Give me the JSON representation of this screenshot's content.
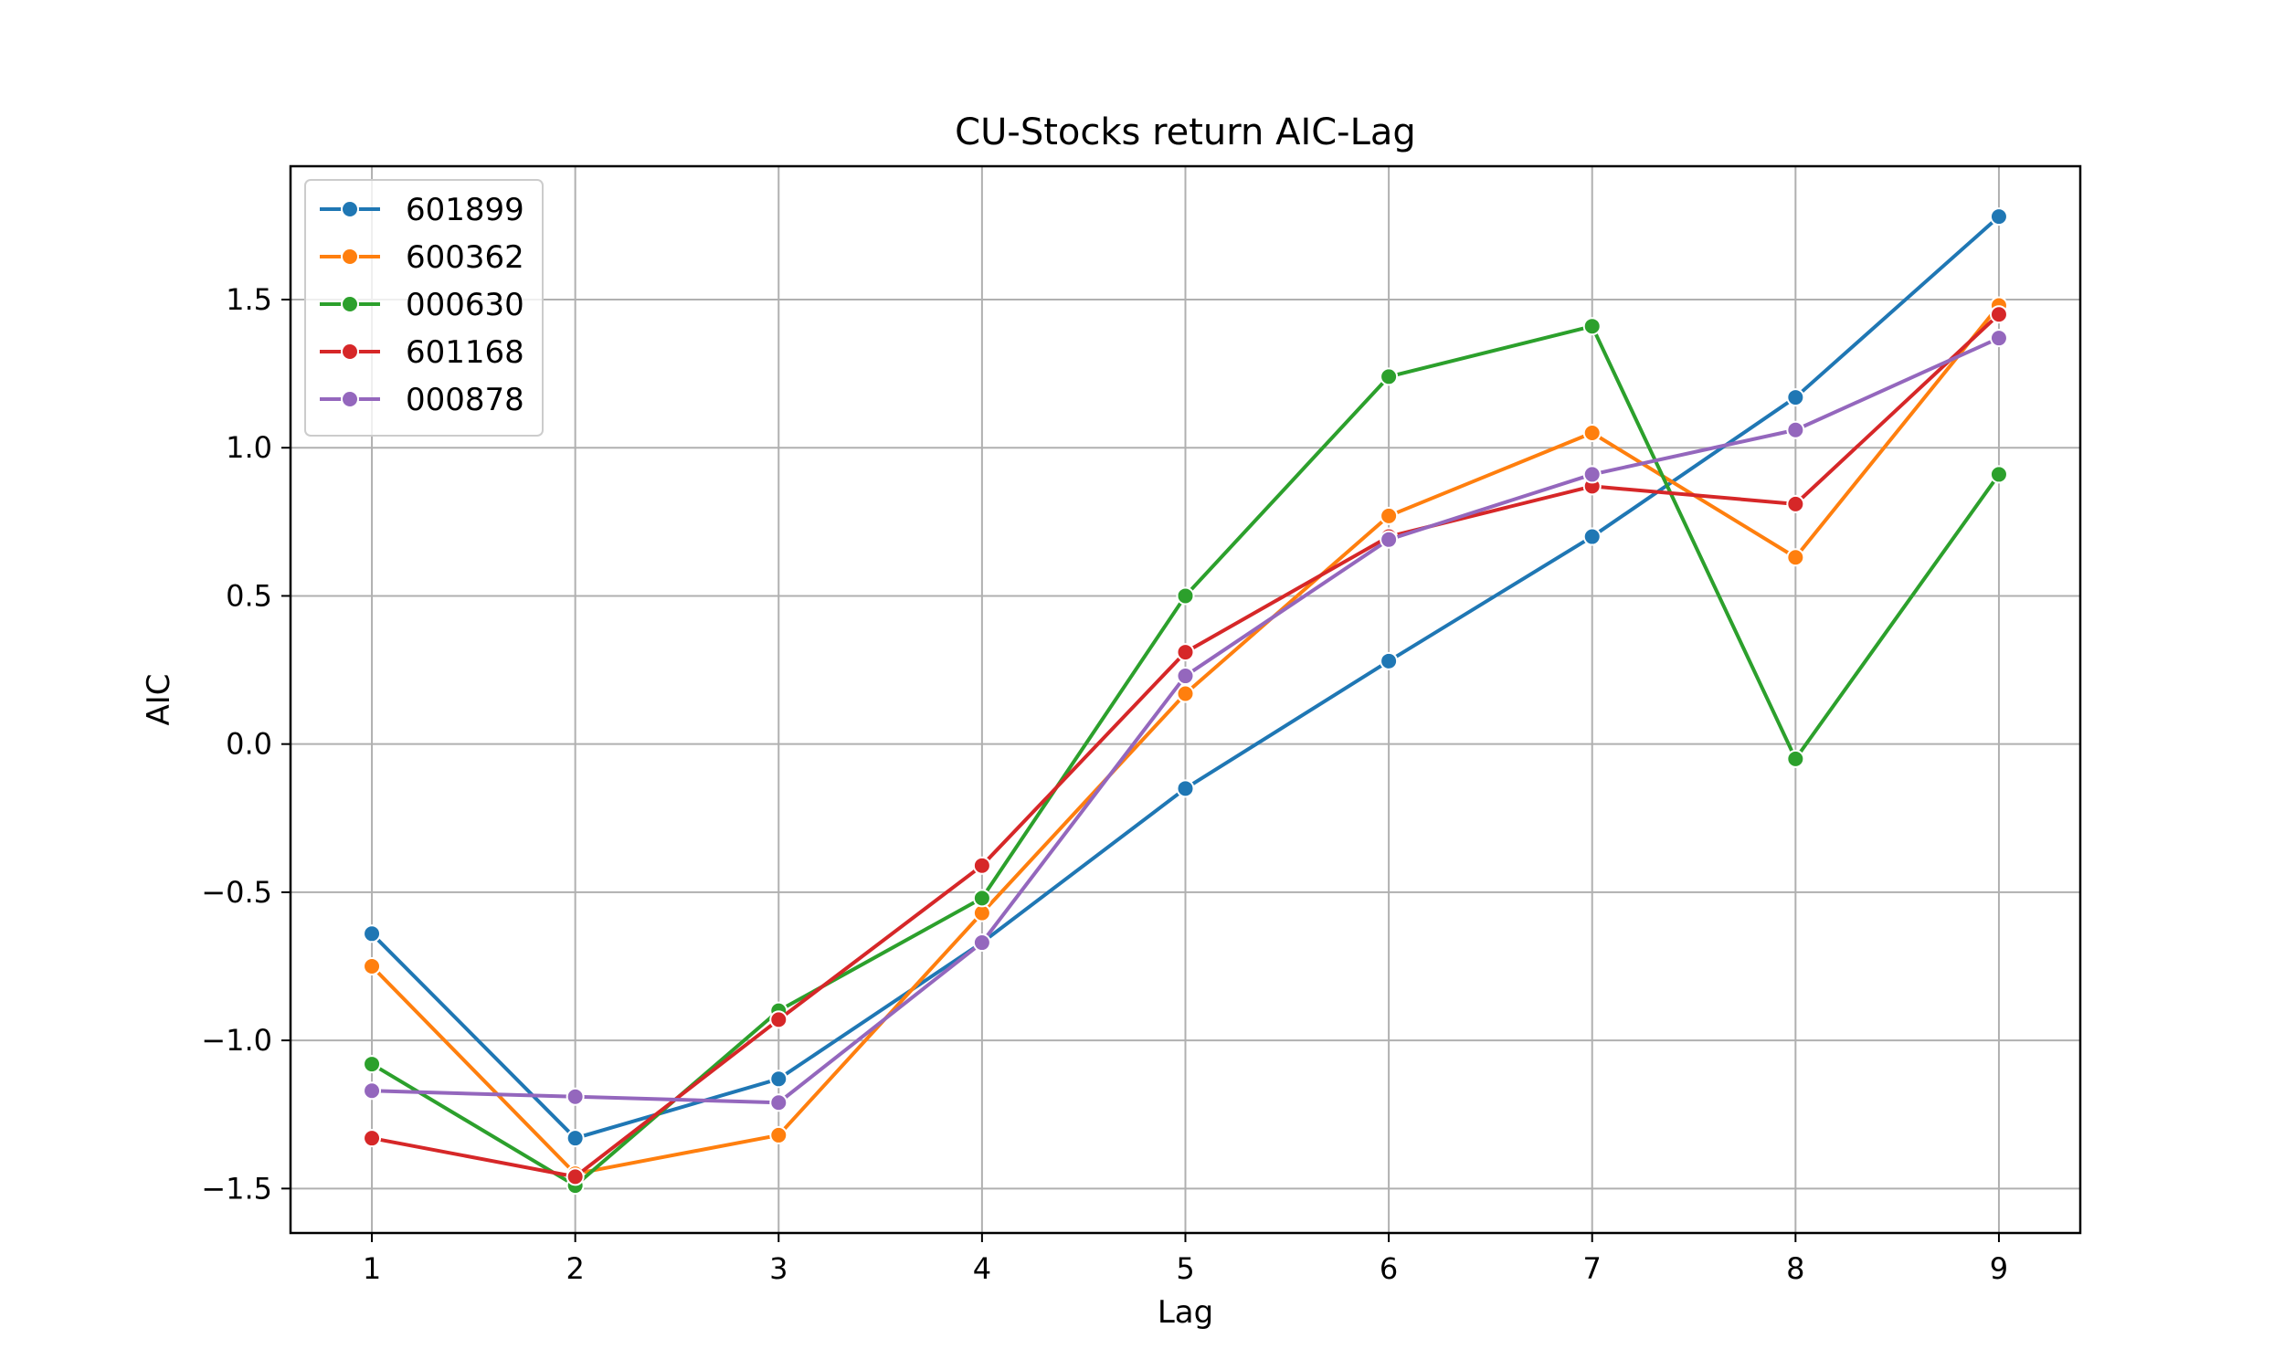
{
  "chart_data": {
    "type": "line",
    "title": "CU-Stocks return AIC-Lag",
    "xlabel": "Lag",
    "ylabel": "AIC",
    "x": [
      1,
      2,
      3,
      4,
      5,
      6,
      7,
      8,
      9
    ],
    "xlim": [
      0.6,
      9.4
    ],
    "ylim": [
      -1.65,
      1.95
    ],
    "yticks": [
      -1.5,
      -1.0,
      -0.5,
      0.0,
      0.5,
      1.0,
      1.5
    ],
    "ytick_labels": [
      "−1.5",
      "−1.0",
      "−0.5",
      "0.0",
      "0.5",
      "1.0",
      "1.5"
    ],
    "xtick_labels": [
      "1",
      "2",
      "3",
      "4",
      "5",
      "6",
      "7",
      "8",
      "9"
    ],
    "grid": true,
    "legend_position": "upper-left",
    "series": [
      {
        "name": "601899",
        "color": "#1f77b4",
        "values": [
          -0.64,
          -1.33,
          -1.13,
          -0.67,
          -0.15,
          0.28,
          0.7,
          1.17,
          1.78
        ]
      },
      {
        "name": "600362",
        "color": "#ff7f0e",
        "values": [
          -0.75,
          -1.45,
          -1.32,
          -0.57,
          0.17,
          0.77,
          1.05,
          0.63,
          1.48
        ]
      },
      {
        "name": "000630",
        "color": "#2ca02c",
        "values": [
          -1.08,
          -1.49,
          -0.9,
          -0.52,
          0.5,
          1.24,
          1.41,
          -0.05,
          0.91
        ]
      },
      {
        "name": "601168",
        "color": "#d62728",
        "values": [
          -1.33,
          -1.46,
          -0.93,
          -0.41,
          0.31,
          0.7,
          0.87,
          0.81,
          1.45
        ]
      },
      {
        "name": "000878",
        "color": "#9467bd",
        "values": [
          -1.17,
          -1.19,
          -1.21,
          -0.67,
          0.23,
          0.69,
          0.91,
          1.06,
          1.37
        ]
      }
    ]
  }
}
